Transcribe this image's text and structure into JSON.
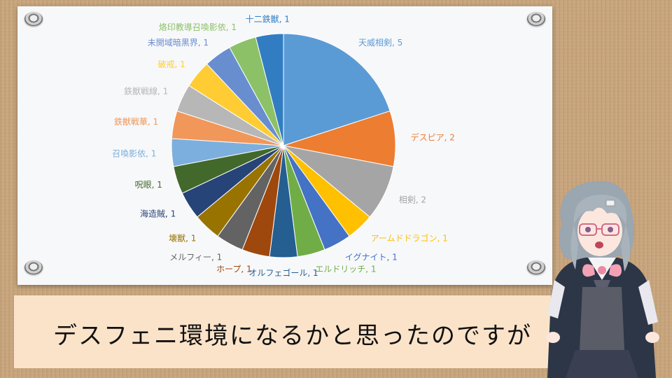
{
  "caption": "デスフェニ環境になるかと思ったのですが",
  "chart_data": {
    "type": "pie",
    "title": "",
    "slices": [
      {
        "label": "天威相剣",
        "value": 5,
        "color": "#5b9bd5"
      },
      {
        "label": "デスピア",
        "value": 2,
        "color": "#ed7d31"
      },
      {
        "label": "相剣",
        "value": 2,
        "color": "#a5a5a5"
      },
      {
        "label": "アームドドラゴン",
        "value": 1,
        "color": "#ffc000"
      },
      {
        "label": "イグナイト",
        "value": 1,
        "color": "#4472c4"
      },
      {
        "label": "エルドリッチ",
        "value": 1,
        "color": "#70ad47"
      },
      {
        "label": "オルフェゴール",
        "value": 1,
        "color": "#255e91"
      },
      {
        "label": "ホープ",
        "value": 1,
        "color": "#9e480e"
      },
      {
        "label": "メルフィー",
        "value": 1,
        "color": "#636363"
      },
      {
        "label": "壊獣",
        "value": 1,
        "color": "#997300"
      },
      {
        "label": "海造賊",
        "value": 1,
        "color": "#264478"
      },
      {
        "label": "呪眼",
        "value": 1,
        "color": "#43682b"
      },
      {
        "label": "召喚影依",
        "value": 1,
        "color": "#7cafdd"
      },
      {
        "label": "鉄獣戦華",
        "value": 1,
        "color": "#f1975a"
      },
      {
        "label": "鉄獣戦線",
        "value": 1,
        "color": "#b7b7b7"
      },
      {
        "label": "破戒",
        "value": 1,
        "color": "#ffcd33"
      },
      {
        "label": "未開域暗黒界",
        "value": 1,
        "color": "#698ed0"
      },
      {
        "label": "烙印教導召喚影依",
        "value": 1,
        "color": "#8cc168"
      },
      {
        "label": "十二鉄獣",
        "value": 1,
        "color": "#327dc2"
      }
    ]
  }
}
